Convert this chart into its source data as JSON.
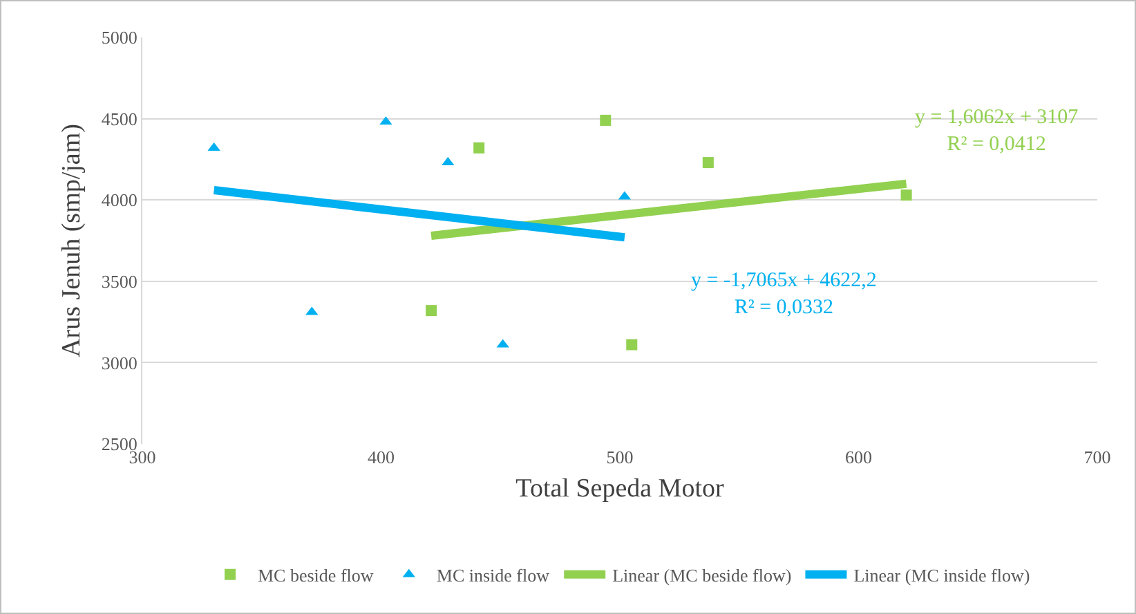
{
  "chart_data": {
    "type": "scatter",
    "xlabel": "Total Sepeda Motor",
    "ylabel": "Arus Jenuh (smp/jam)",
    "xlim": [
      300,
      700
    ],
    "xticks": [
      300,
      400,
      500,
      600,
      700
    ],
    "ylim": [
      2500,
      5000
    ],
    "yticks": [
      2500,
      3000,
      3500,
      4000,
      4500,
      5000
    ],
    "grid": "y",
    "legend": "bottom",
    "series": [
      {
        "name": "MC beside flow",
        "marker": "square",
        "color": "#92d050",
        "x": [
          421,
          441,
          494,
          505,
          537,
          620
        ],
        "values": [
          3320,
          4320,
          4490,
          3110,
          4230,
          4030
        ]
      },
      {
        "name": "MC inside flow",
        "marker": "triangle",
        "color": "#00b0f0",
        "x": [
          330,
          371,
          402,
          428,
          451,
          502
        ],
        "values": [
          4320,
          3310,
          4480,
          4230,
          3110,
          4020
        ]
      },
      {
        "name": "Linear (MC beside flow)",
        "type": "line",
        "marker": "none",
        "color": "#92d050",
        "x": [
          421,
          620
        ],
        "values": [
          3780,
          4100
        ]
      },
      {
        "name": "Linear (MC inside flow)",
        "type": "line",
        "marker": "none",
        "color": "#00b0f0",
        "x": [
          330,
          502
        ],
        "values": [
          4060,
          3770
        ]
      }
    ],
    "annotations": [
      "y = 1,6062x + 3107\nR² = 0,0412",
      "y = -1,7065x + 4622,2\nR² = 0,0332"
    ]
  }
}
